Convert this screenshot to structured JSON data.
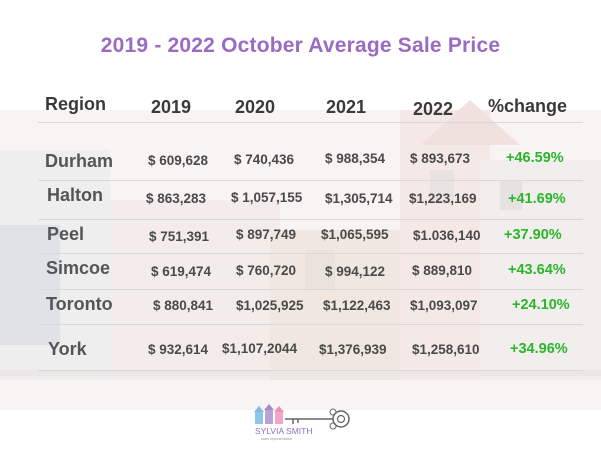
{
  "title": "2019 - 2022 October Average Sale Price",
  "headers": [
    "Region",
    "2019",
    "2020",
    "2021",
    "2022",
    "%change"
  ],
  "rows": [
    {
      "region": "Durham",
      "values": [
        "$ 609,628",
        "$ 740,436",
        "$ 988,354",
        "$ 893,673"
      ],
      "change": "+46.59%"
    },
    {
      "region": "Halton",
      "values": [
        "$ 863,283",
        "$ 1,057,155",
        "$1,305,714",
        "$1,223,169"
      ],
      "change": "+41.69%"
    },
    {
      "region": "Peel",
      "values": [
        "$ 751,391",
        "$ 897,749",
        "$1,065,595",
        "$1.036,140"
      ],
      "change": "+37.90%"
    },
    {
      "region": "Simcoe",
      "values": [
        "$ 619,474",
        "$ 760,720",
        "$ 994,122",
        "$ 889,810"
      ],
      "change": "+43.64%"
    },
    {
      "region": "Toronto",
      "values": [
        "$ 880,841",
        "$1,025,925",
        "$1,122,463",
        "$1,093,097"
      ],
      "change": "+24.10%"
    },
    {
      "region": "York",
      "values": [
        "$ 932,614",
        "$1,107,2044",
        "$1,376,939",
        "$1,258,610"
      ],
      "change": "+34.96%"
    }
  ],
  "logo": {
    "name": "SYLVIA SMITH",
    "tagline": "sales representative"
  },
  "colors": {
    "title": "#9a6bc0",
    "change": "#2bb52b",
    "text": "#4a4a4a"
  }
}
